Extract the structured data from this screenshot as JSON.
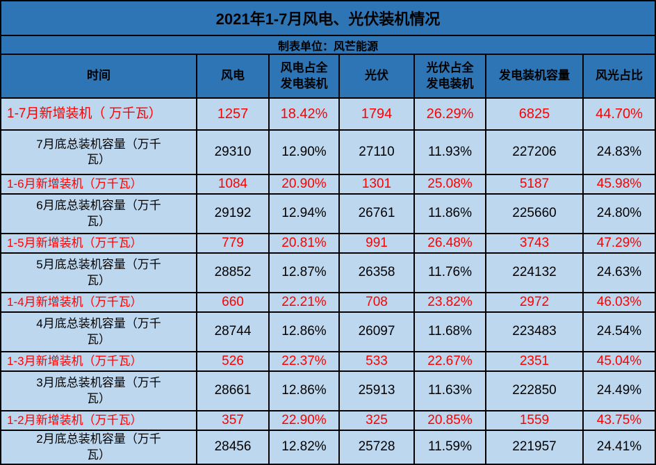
{
  "page": {
    "title": "2021年1-7月风电、光伏装机情况",
    "subtitle": "制表单位：风芒能源"
  },
  "colors": {
    "header_bg": "#2E75B6",
    "row_bg": "#BDD7EE",
    "new_row_text": "#FF0000",
    "total_row_text": "#000000",
    "border": "#000000"
  },
  "table": {
    "columns": [
      "时间",
      "风电",
      "风电占全\n发电装机",
      "光伏",
      "光伏占全\n发电装机",
      "发电装机容量",
      "风光占比"
    ],
    "rows": [
      {
        "label": "1-7月新增装机（ 万千瓦）",
        "type": "new",
        "large": true,
        "values": [
          "1257",
          "18.42%",
          "1794",
          "26.29%",
          "6825",
          "44.70%"
        ]
      },
      {
        "label": "7月底总装机容量（万千\n瓦）",
        "type": "total",
        "large": false,
        "values": [
          "29310",
          "12.90%",
          "27110",
          "11.93%",
          "227206",
          "24.83%"
        ]
      },
      {
        "label": "1-6月新增装机（万千瓦）",
        "type": "new",
        "large": false,
        "values": [
          "1084",
          "20.90%",
          "1301",
          "25.08%",
          "5187",
          "45.98%"
        ]
      },
      {
        "label": "6月底总装机容量（万千\n瓦）",
        "type": "total",
        "large": false,
        "values": [
          "29192",
          "12.94%",
          "26761",
          "11.86%",
          "225660",
          "24.80%"
        ]
      },
      {
        "label": "1-5月新增装机（万千瓦）",
        "type": "new",
        "large": false,
        "values": [
          "779",
          "20.81%",
          "991",
          "26.48%",
          "3743",
          "47.29%"
        ]
      },
      {
        "label": "5月底总装机容量（万千\n瓦）",
        "type": "total",
        "large": false,
        "values": [
          "28852",
          "12.87%",
          "26358",
          "11.76%",
          "224132",
          "24.63%"
        ]
      },
      {
        "label": "1-4月新增装机（万千瓦）",
        "type": "new",
        "large": false,
        "values": [
          "660",
          "22.21%",
          "708",
          "23.82%",
          "2972",
          "46.03%"
        ]
      },
      {
        "label": "4月底总装机容量（万千\n瓦）",
        "type": "total",
        "large": false,
        "values": [
          "28744",
          "12.86%",
          "26097",
          "11.68%",
          "223483",
          "24.54%"
        ]
      },
      {
        "label": "1-3月新增装机（万千瓦）",
        "type": "new",
        "large": false,
        "values": [
          "526",
          "22.37%",
          "533",
          "22.67%",
          "2351",
          "45.04%"
        ]
      },
      {
        "label": "3月底总装机容量（万千\n瓦）",
        "type": "total",
        "large": false,
        "values": [
          "28661",
          "12.86%",
          "25913",
          "11.63%",
          "222850",
          "24.49%"
        ]
      },
      {
        "label": "1-2月新增装机（万千瓦）",
        "type": "new",
        "large": false,
        "values": [
          "357",
          "22.90%",
          "325",
          "20.85%",
          "1559",
          "43.75%"
        ]
      },
      {
        "label": "2月底总装机容量（万千\n瓦）",
        "type": "total",
        "large": false,
        "values": [
          "28456",
          "12.82%",
          "25728",
          "11.59%",
          "221957",
          "24.41%"
        ]
      }
    ]
  },
  "chart_data": {
    "type": "table",
    "title": "2021年1-7月风电、光伏装机情况",
    "subtitle": "制表单位：风芒能源",
    "columns": [
      "时间",
      "风电",
      "风电占全发电装机",
      "光伏",
      "光伏占全发电装机",
      "发电装机容量",
      "风光占比"
    ],
    "rows": [
      [
        "1-7月新增装机（万千瓦）",
        1257,
        "18.42%",
        1794,
        "26.29%",
        6825,
        "44.70%"
      ],
      [
        "7月底总装机容量（万千瓦）",
        29310,
        "12.90%",
        27110,
        "11.93%",
        227206,
        "24.83%"
      ],
      [
        "1-6月新增装机（万千瓦）",
        1084,
        "20.90%",
        1301,
        "25.08%",
        5187,
        "45.98%"
      ],
      [
        "6月底总装机容量（万千瓦）",
        29192,
        "12.94%",
        26761,
        "11.86%",
        225660,
        "24.80%"
      ],
      [
        "1-5月新增装机（万千瓦）",
        779,
        "20.81%",
        991,
        "26.48%",
        3743,
        "47.29%"
      ],
      [
        "5月底总装机容量（万千瓦）",
        28852,
        "12.87%",
        26358,
        "11.76%",
        224132,
        "24.63%"
      ],
      [
        "1-4月新增装机（万千瓦）",
        660,
        "22.21%",
        708,
        "23.82%",
        2972,
        "46.03%"
      ],
      [
        "4月底总装机容量（万千瓦）",
        28744,
        "12.86%",
        26097,
        "11.68%",
        223483,
        "24.54%"
      ],
      [
        "1-3月新增装机（万千瓦）",
        526,
        "22.37%",
        533,
        "22.67%",
        2351,
        "45.04%"
      ],
      [
        "3月底总装机容量（万千瓦）",
        28661,
        "12.86%",
        25913,
        "11.63%",
        222850,
        "24.49%"
      ],
      [
        "1-2月新增装机（万千瓦）",
        357,
        "22.90%",
        325,
        "20.85%",
        1559,
        "43.75%"
      ],
      [
        "2月底总装机容量（万千瓦）",
        28456,
        "12.82%",
        25728,
        "11.59%",
        221957,
        "24.41%"
      ]
    ]
  }
}
